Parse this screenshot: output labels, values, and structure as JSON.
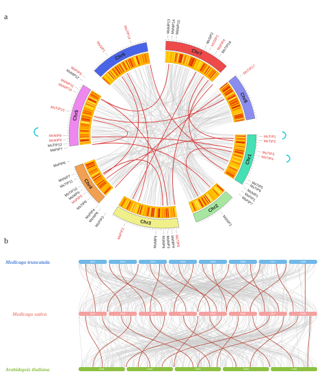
{
  "panel_a": {
    "label": "a",
    "chromosomes": [
      {
        "name": "Chr7",
        "color": "#ee4a4a",
        "start": 2,
        "end": 43
      },
      {
        "name": "Chr8",
        "color": "#8a8cf0",
        "start": 51,
        "end": 80
      },
      {
        "name": "Chr1",
        "color": "#45e0b4",
        "start": 90,
        "end": 122
      },
      {
        "name": "Chr2",
        "color": "#a6e6a0",
        "start": 132,
        "end": 159
      },
      {
        "name": "Chr3",
        "color": "#f0f08a",
        "start": 170,
        "end": 212
      },
      {
        "name": "Chr4",
        "color": "#f0a050",
        "start": 223,
        "end": 250
      },
      {
        "name": "Chr5",
        "color": "#ee88ee",
        "start": 263,
        "end": 302
      },
      {
        "name": "Chr6",
        "color": "#4a64e8",
        "start": 313,
        "end": 350
      }
    ],
    "genes": [
      {
        "name": "MsNIP13",
        "angle": 3,
        "color": "#222222"
      },
      {
        "name": "MsNIP14",
        "angle": 5.5,
        "color": "#222222"
      },
      {
        "name": "MsNIP15",
        "angle": 8,
        "color": "#222222"
      },
      {
        "name": "MsSIP2",
        "angle": 26,
        "color": "#222222"
      },
      {
        "name": "MsSIP3",
        "angle": 29,
        "color": "#e03030"
      },
      {
        "name": "MsPIP8",
        "angle": 33,
        "color": "#e03030"
      },
      {
        "name": "MsTIP16",
        "angle": 36,
        "color": "#222222"
      },
      {
        "name": "MsTIP17",
        "angle": 53,
        "color": "#e03030"
      },
      {
        "name": "MsTIP1",
        "angle": 91,
        "color": "#e03030"
      },
      {
        "name": "MsTIP2",
        "angle": 93.5,
        "color": "#e03030"
      },
      {
        "name": "MsTIP3",
        "angle": 100,
        "color": "#e03030"
      },
      {
        "name": "MsTIP4",
        "angle": 102.5,
        "color": "#e03030"
      },
      {
        "name": "MsTIP5",
        "angle": 118,
        "color": "#222222"
      },
      {
        "name": "MsTIP6",
        "angle": 120,
        "color": "#222222"
      },
      {
        "name": "MsNIP1",
        "angle": 123,
        "color": "#222222"
      },
      {
        "name": "MsPIP1",
        "angle": 125.5,
        "color": "#222222"
      },
      {
        "name": "MsPIP7",
        "angle": 128,
        "color": "#222222"
      },
      {
        "name": "MsNIP2",
        "angle": 143,
        "color": "#222222"
      },
      {
        "name": "MsTIP8",
        "angle": 172,
        "color": "#e03030"
      },
      {
        "name": "MsNIP4",
        "angle": 174.5,
        "color": "#222222"
      },
      {
        "name": "MsNIP3",
        "angle": 177,
        "color": "#222222"
      },
      {
        "name": "MsNIP6",
        "angle": 179.5,
        "color": "#222222"
      },
      {
        "name": "MsNIP5",
        "angle": 184,
        "color": "#222222"
      },
      {
        "name": "MsPIP2",
        "angle": 203,
        "color": "#e03030"
      },
      {
        "name": "MsPIP3",
        "angle": 216,
        "color": "#222222"
      },
      {
        "name": "MsNIP8",
        "angle": 220,
        "color": "#222222"
      },
      {
        "name": "MsPIP4",
        "angle": 222.5,
        "color": "#222222"
      },
      {
        "name": "MsTIP9",
        "angle": 229,
        "color": "#222222"
      },
      {
        "name": "MsPIP5",
        "angle": 233,
        "color": "#e03030"
      },
      {
        "name": "MsNIP9",
        "angle": 235.5,
        "color": "#222222"
      },
      {
        "name": "MsTIP10",
        "angle": 238,
        "color": "#222222"
      },
      {
        "name": "MsTIP11",
        "angle": 243,
        "color": "#222222"
      },
      {
        "name": "MsNIP7",
        "angle": 246,
        "color": "#222222"
      },
      {
        "name": "MsPIP6",
        "angle": 254,
        "color": "#222222"
      },
      {
        "name": "MsPIP7",
        "angle": 262,
        "color": "#222222"
      },
      {
        "name": "MsTIP12",
        "angle": 264.5,
        "color": "#222222"
      },
      {
        "name": "MsNIP9",
        "angle": 267,
        "color": "#e03030"
      },
      {
        "name": "MsNIP8",
        "angle": 269.5,
        "color": "#e03030"
      },
      {
        "name": "MsTIP13",
        "angle": 284,
        "color": "#e03030"
      },
      {
        "name": "MsNIP10",
        "angle": 296,
        "color": "#e03030"
      },
      {
        "name": "MsNIP11",
        "angle": 298.5,
        "color": "#e03030"
      },
      {
        "name": "MsNIP12",
        "angle": 304,
        "color": "#222222"
      },
      {
        "name": "MsPIP9",
        "angle": 306.5,
        "color": "#e03030"
      },
      {
        "name": "MsSIP1",
        "angle": 325,
        "color": "#e03030"
      },
      {
        "name": "MsTIP14",
        "angle": 341,
        "color": "#e03030"
      }
    ],
    "red_links": [
      [
        5,
        300
      ],
      [
        28,
        205
      ],
      [
        35,
        95
      ],
      [
        40,
        120
      ],
      [
        55,
        222
      ],
      [
        60,
        285
      ],
      [
        93,
        232
      ],
      [
        101,
        268
      ],
      [
        104,
        150
      ],
      [
        138,
        262
      ],
      [
        176,
        300
      ],
      [
        180,
        237
      ],
      [
        200,
        330
      ],
      [
        236,
        325
      ],
      [
        262,
        282
      ],
      [
        170,
        45
      ],
      [
        350,
        112
      ]
    ]
  },
  "panel_b": {
    "label": "b",
    "tracks": [
      {
        "species": "Medicago truncatula",
        "color": "#4a7fd6",
        "bar_color": "#70b8e8"
      },
      {
        "species": "Medicago sativa",
        "color": "#f08a80",
        "bar_color": "#f4a0a0"
      },
      {
        "species": "Arabidopsis thaliana",
        "color": "#8cc040",
        "bar_color": "#8cc040"
      }
    ],
    "top_chr_labels": [
      "Chr1",
      "Chr2",
      "Chr3",
      "Chr4",
      "Chr5",
      "Chr6",
      "Chr7",
      "Chr8"
    ],
    "middle_chr_labels": [
      "Chr1",
      "Chr2",
      "Chr3",
      "Chr4",
      "Chr5",
      "Chr6",
      "Chr7",
      "Chr8"
    ],
    "bottom_chr_labels": [
      "Chr1",
      "Chr2",
      "Chr3",
      "Chr4",
      "Chr5"
    ],
    "red_links_top_mid": [
      [
        0.03,
        0.07
      ],
      [
        0.07,
        0.18
      ],
      [
        0.13,
        0.35
      ],
      [
        0.17,
        0.28
      ],
      [
        0.25,
        0.12
      ],
      [
        0.3,
        0.45
      ],
      [
        0.34,
        0.3
      ],
      [
        0.36,
        0.58
      ],
      [
        0.42,
        0.55
      ],
      [
        0.48,
        0.4
      ],
      [
        0.52,
        0.68
      ],
      [
        0.56,
        0.62
      ],
      [
        0.63,
        0.5
      ],
      [
        0.66,
        0.84
      ],
      [
        0.72,
        0.78
      ],
      [
        0.76,
        0.62
      ],
      [
        0.83,
        0.9
      ],
      [
        0.87,
        0.72
      ],
      [
        0.95,
        0.95
      ]
    ],
    "red_links_mid_bottom": [
      [
        0.03,
        0.1
      ],
      [
        0.1,
        0.3
      ],
      [
        0.18,
        0.48
      ],
      [
        0.22,
        0.06
      ],
      [
        0.3,
        0.55
      ],
      [
        0.36,
        0.25
      ],
      [
        0.44,
        0.66
      ],
      [
        0.5,
        0.4
      ],
      [
        0.55,
        0.8
      ],
      [
        0.6,
        0.2
      ],
      [
        0.67,
        0.58
      ],
      [
        0.73,
        0.9
      ],
      [
        0.8,
        0.35
      ],
      [
        0.86,
        0.72
      ],
      [
        0.92,
        0.5
      ],
      [
        0.97,
        0.96
      ]
    ]
  }
}
